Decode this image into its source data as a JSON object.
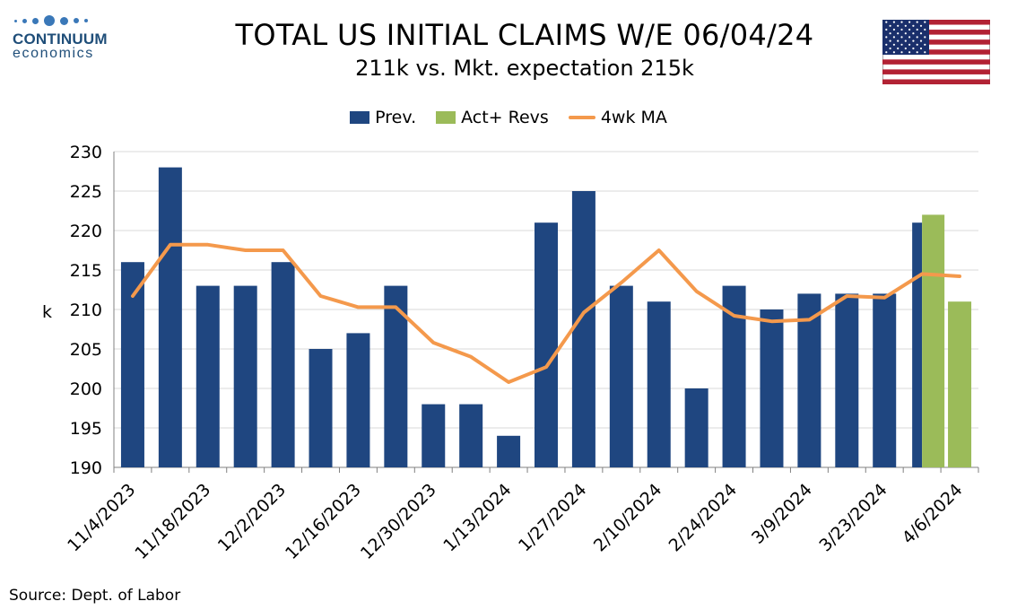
{
  "logo": {
    "name": "CONTINUUM",
    "sub": "economics"
  },
  "header": {
    "title": "TOTAL US INITIAL CLAIMS W/E 06/04/24",
    "subtitle": "211k vs. Mkt. expectation 215k"
  },
  "source": "Source: Dept. of Labor",
  "colors": {
    "prev": "#1f4680",
    "act": "#9bbb59",
    "ma": "#f4994c",
    "grid": "#d9d9d9",
    "logo": "#3a78b8"
  },
  "chart_data": {
    "type": "bar",
    "title": "TOTAL US INITIAL CLAIMS W/E 06/04/24",
    "subtitle": "211k vs. Mkt. expectation 215k",
    "ylabel": "k",
    "ylim": [
      190,
      230
    ],
    "yticks": [
      190,
      195,
      200,
      205,
      210,
      215,
      220,
      225,
      230
    ],
    "grid": true,
    "legend_position": "top-center",
    "categories": [
      "11/4/2023",
      "11/11/2023",
      "11/18/2023",
      "11/25/2023",
      "12/2/2023",
      "12/9/2023",
      "12/16/2023",
      "12/23/2023",
      "12/30/2023",
      "1/6/2024",
      "1/13/2024",
      "1/20/2024",
      "1/27/2024",
      "2/3/2024",
      "2/10/2024",
      "2/17/2024",
      "2/24/2024",
      "3/2/2024",
      "3/9/2024",
      "3/16/2024",
      "3/23/2024",
      "3/30/2024",
      "4/6/2024"
    ],
    "tick_labels": [
      "11/4/2023",
      "11/18/2023",
      "12/2/2023",
      "12/16/2023",
      "12/30/2023",
      "1/13/2024",
      "1/27/2024",
      "2/10/2024",
      "2/24/2024",
      "3/9/2024",
      "3/23/2024",
      "4/6/2024"
    ],
    "series": [
      {
        "name": "Prev.",
        "kind": "bar",
        "values": [
          216,
          228,
          213,
          213,
          216,
          205,
          207,
          213,
          198,
          198,
          194,
          221,
          225,
          213,
          211,
          200,
          213,
          210,
          212,
          212,
          212,
          221,
          null
        ]
      },
      {
        "name": "Act+ Revs",
        "kind": "bar",
        "values": [
          null,
          null,
          null,
          null,
          null,
          null,
          null,
          null,
          null,
          null,
          null,
          null,
          null,
          null,
          null,
          null,
          null,
          null,
          null,
          null,
          null,
          222,
          211
        ]
      },
      {
        "name": "4wk MA",
        "kind": "line",
        "values": [
          211.7,
          218.2,
          218.2,
          217.5,
          217.5,
          211.7,
          210.3,
          210.3,
          205.8,
          204,
          200.8,
          202.7,
          209.6,
          213.4,
          217.5,
          212.3,
          209.2,
          208.5,
          208.7,
          211.7,
          211.5,
          214.5,
          214.2
        ]
      }
    ]
  }
}
